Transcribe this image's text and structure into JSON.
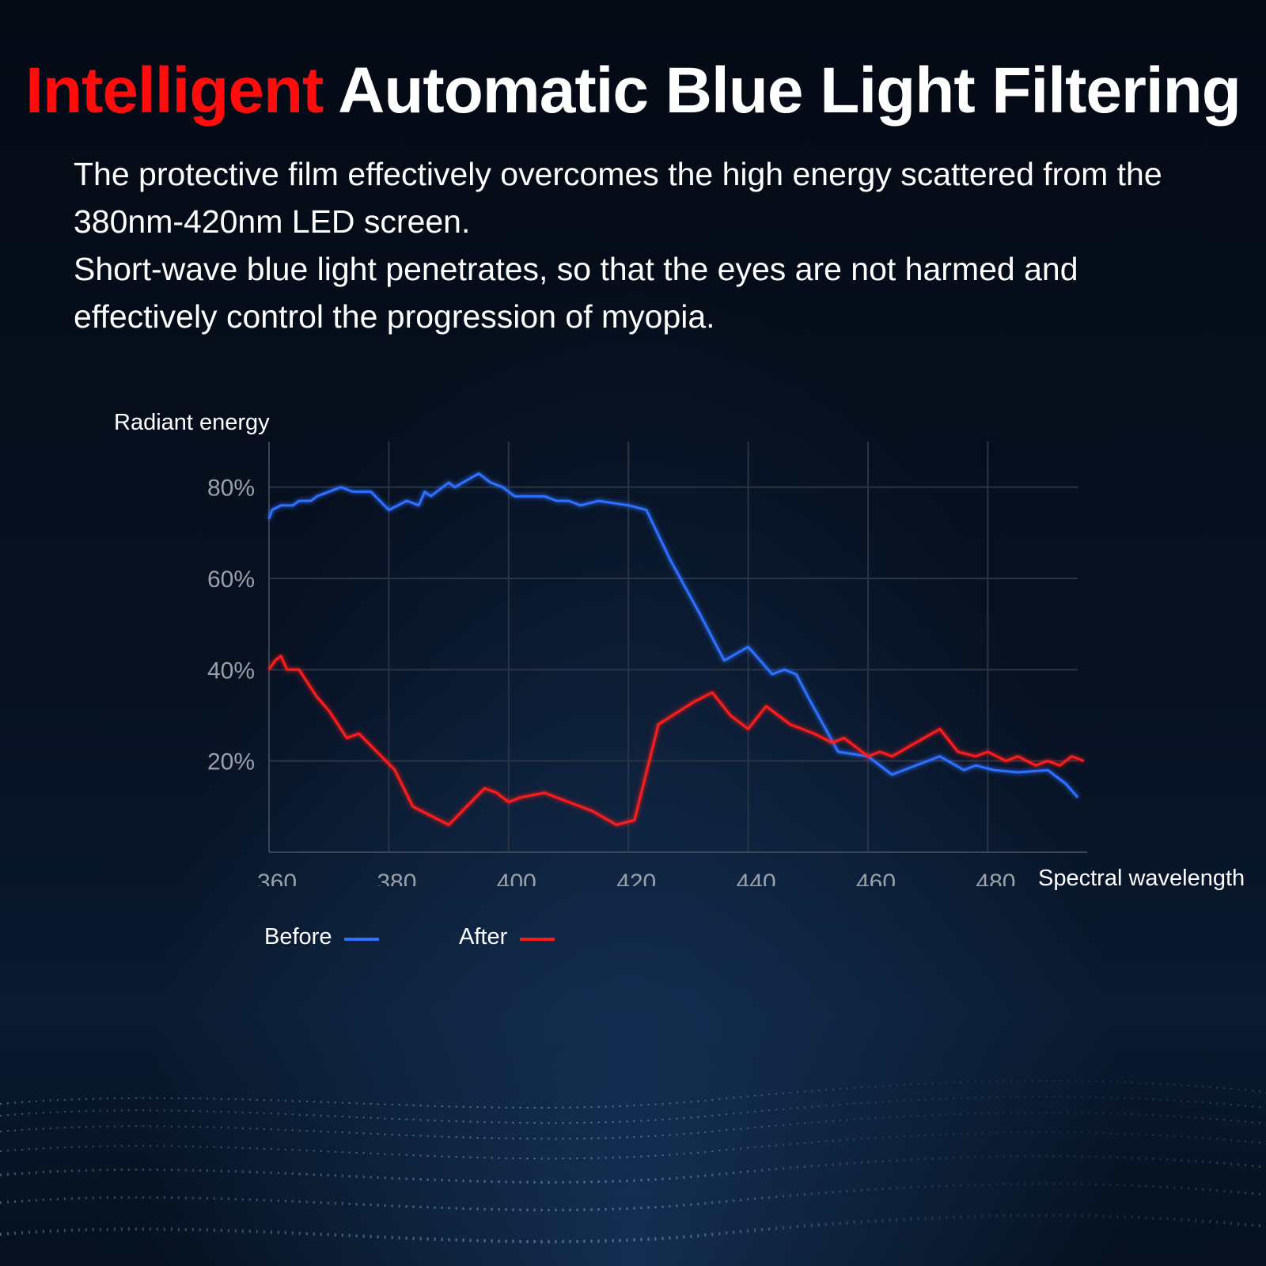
{
  "headline": {
    "accent": "Intelligent",
    "rest": "Automatic Blue Light Filtering"
  },
  "description": {
    "paragraph1": "The protective film effectively overcomes the high energy scattered from the 380nm-420nm LED screen.",
    "paragraph2": "Short-wave blue light penetrates, so that the eyes are not harmed and effectively control the progression of myopia."
  },
  "colors": {
    "accent_red": "#ff0d0d",
    "before_line": "#2f6fff",
    "after_line": "#ff1a1a",
    "background": "#050b16"
  },
  "chart_data": {
    "type": "line",
    "xlabel": "Spectral wavelength",
    "ylabel": "Radiant energy",
    "xlim": [
      360,
      495
    ],
    "ylim": [
      0,
      90
    ],
    "x_ticks": [
      360,
      380,
      400,
      420,
      440,
      460,
      480
    ],
    "x_tick_labels": [
      "360",
      "380",
      "400",
      "420",
      "440",
      "460",
      "480"
    ],
    "y_ticks": [
      20,
      40,
      60,
      80
    ],
    "y_tick_labels": [
      "20%",
      "40%",
      "60%",
      "80%"
    ],
    "grid": true,
    "legend": "bottom-left",
    "series": [
      {
        "name": "Before",
        "color": "#2f6fff",
        "points": [
          [
            360,
            73
          ],
          [
            360.5,
            75
          ],
          [
            362,
            76
          ],
          [
            364,
            76
          ],
          [
            365,
            77
          ],
          [
            367,
            77
          ],
          [
            368,
            78
          ],
          [
            372,
            80
          ],
          [
            374,
            79
          ],
          [
            377,
            79
          ],
          [
            380,
            75
          ],
          [
            383,
            77
          ],
          [
            385,
            76
          ],
          [
            386,
            79
          ],
          [
            387,
            78
          ],
          [
            390,
            81
          ],
          [
            391,
            80
          ],
          [
            395,
            83
          ],
          [
            397,
            81
          ],
          [
            399,
            80
          ],
          [
            401,
            78
          ],
          [
            403,
            78
          ],
          [
            406,
            78
          ],
          [
            408,
            77
          ],
          [
            410,
            77
          ],
          [
            412,
            76
          ],
          [
            415,
            77
          ],
          [
            420,
            76
          ],
          [
            423,
            75
          ],
          [
            427,
            64
          ],
          [
            432,
            52
          ],
          [
            436,
            42
          ],
          [
            440,
            45
          ],
          [
            444,
            39
          ],
          [
            446,
            40
          ],
          [
            448,
            39
          ],
          [
            450,
            34
          ],
          [
            455,
            22
          ],
          [
            460,
            21
          ],
          [
            464,
            17
          ],
          [
            468,
            19
          ],
          [
            472,
            21
          ],
          [
            476,
            18
          ],
          [
            478,
            19
          ],
          [
            481,
            18
          ],
          [
            485,
            17.5
          ],
          [
            490,
            18
          ],
          [
            493,
            15
          ],
          [
            495,
            12
          ]
        ]
      },
      {
        "name": "After",
        "color": "#ff1a1a",
        "points": [
          [
            360,
            40
          ],
          [
            361,
            42
          ],
          [
            362,
            43
          ],
          [
            363,
            40
          ],
          [
            365,
            40
          ],
          [
            368,
            34
          ],
          [
            370,
            31
          ],
          [
            373,
            25
          ],
          [
            375,
            26
          ],
          [
            378,
            22
          ],
          [
            381,
            18
          ],
          [
            384,
            10
          ],
          [
            387,
            8
          ],
          [
            390,
            6
          ],
          [
            396,
            14
          ],
          [
            398,
            13
          ],
          [
            400,
            11
          ],
          [
            402,
            12
          ],
          [
            406,
            13
          ],
          [
            410,
            11
          ],
          [
            414,
            9
          ],
          [
            418,
            6
          ],
          [
            421,
            7
          ],
          [
            425,
            28
          ],
          [
            431,
            33
          ],
          [
            434,
            35
          ],
          [
            437,
            30
          ],
          [
            440,
            27
          ],
          [
            443,
            32
          ],
          [
            447,
            28
          ],
          [
            451,
            26
          ],
          [
            454,
            24
          ],
          [
            456,
            25
          ],
          [
            460,
            21
          ],
          [
            462,
            22
          ],
          [
            464,
            21
          ],
          [
            468,
            24
          ],
          [
            472,
            27
          ],
          [
            475,
            22
          ],
          [
            478,
            21
          ],
          [
            480,
            22
          ],
          [
            483,
            20
          ],
          [
            485,
            21
          ],
          [
            488,
            19
          ],
          [
            490,
            20
          ],
          [
            492,
            19
          ],
          [
            494,
            21
          ],
          [
            496,
            20
          ]
        ]
      }
    ]
  }
}
